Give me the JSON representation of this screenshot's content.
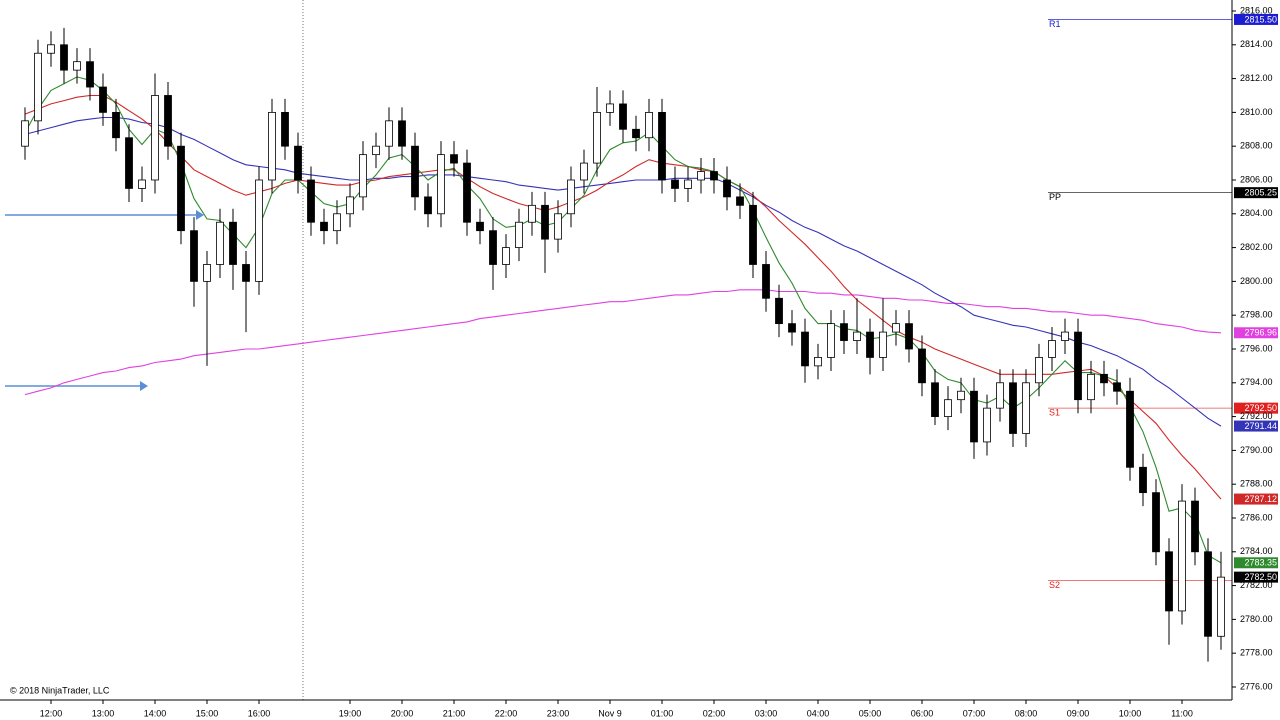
{
  "chart_data": {
    "type": "candlestick",
    "copyright": "© 2018 NinjaTrader, LLC",
    "categories": [
      null,
      null,
      "12:00",
      null,
      null,
      null,
      "13:00",
      null,
      null,
      null,
      "14:00",
      null,
      null,
      null,
      "15:00",
      null,
      null,
      null,
      "16:00",
      null,
      null,
      null,
      null,
      null,
      null,
      "19:00",
      null,
      null,
      null,
      "20:00",
      null,
      null,
      null,
      "21:00",
      null,
      null,
      null,
      "22:00",
      null,
      null,
      null,
      "23:00",
      null,
      null,
      null,
      "Nov 9",
      null,
      null,
      null,
      "01:00",
      null,
      null,
      null,
      "02:00",
      null,
      null,
      null,
      "03:00",
      null,
      null,
      null,
      "04:00",
      null,
      null,
      null,
      "05:00",
      null,
      null,
      null,
      "06:00",
      null,
      null,
      null,
      "07:00",
      null,
      null,
      null,
      "08:00",
      null,
      null,
      null,
      "09:00",
      null,
      null,
      null,
      "10:00",
      null,
      null,
      null,
      "11:00",
      null,
      null,
      null
    ],
    "open": [
      2808,
      2809.5,
      2813.5,
      2814,
      2812.5,
      2813,
      2811.5,
      2810,
      2808.5,
      2805.5,
      2806,
      2811,
      2808,
      2803,
      2800,
      2801,
      2803.5,
      2801,
      2800,
      2806,
      2810,
      2808,
      2806,
      2803.5,
      2803,
      2804,
      2805,
      2807.5,
      2808,
      2809.5,
      2808,
      2805,
      2804,
      2807.5,
      2807,
      2803.5,
      2803,
      2801,
      2802,
      2803.5,
      2804.5,
      2802.5,
      2804,
      2806,
      2807,
      2810,
      2810.5,
      2809,
      2808.5,
      2810,
      2806,
      2805.5,
      2806,
      2806.5,
      2806,
      2805,
      2804.5,
      2801,
      2799,
      2797.5,
      2797,
      2795,
      2795.5,
      2797.5,
      2796.5,
      2797,
      2795.5,
      2797,
      2797.5,
      2796,
      2794,
      2792,
      2793,
      2793.5,
      2790.5,
      2792.5,
      2794,
      2791,
      2794,
      2795.5,
      2796.5,
      2797,
      2793,
      2794.5,
      2794,
      2793.5,
      2789,
      2787.5,
      2784,
      2780.5,
      2787,
      2784,
      2779
    ],
    "high": [
      2810.3,
      2814.3,
      2814.8,
      2815,
      2813.8,
      2813.8,
      2812.3,
      2810.8,
      2809.3,
      2806.8,
      2812.3,
      2811.8,
      2808.8,
      2803.8,
      2801.8,
      2804.3,
      2804.3,
      2801.8,
      2806.8,
      2810.8,
      2810.8,
      2808.8,
      2806.8,
      2804.3,
      2804.8,
      2805.8,
      2808.3,
      2808.8,
      2810.3,
      2810.3,
      2808.8,
      2805.8,
      2808.3,
      2808.3,
      2807.8,
      2804.3,
      2803.8,
      2802.8,
      2804.3,
      2805.3,
      2805.3,
      2804.8,
      2806.8,
      2807.8,
      2811.5,
      2811.3,
      2811.3,
      2809.8,
      2810.8,
      2810.8,
      2806.8,
      2806.8,
      2807.3,
      2807.3,
      2806.8,
      2805.8,
      2805.3,
      2801.8,
      2799.8,
      2798.3,
      2797.8,
      2796.3,
      2798.3,
      2798.3,
      2799,
      2797.8,
      2799,
      2798.3,
      2798.3,
      2796.8,
      2794.8,
      2793.8,
      2794.3,
      2794.3,
      2793.3,
      2794.8,
      2794.8,
      2794.8,
      2796.3,
      2797.3,
      2797.8,
      2797.8,
      2795.3,
      2795.3,
      2794.8,
      2794.3,
      2789.8,
      2788.3,
      2784.8,
      2788,
      2787.8,
      2784.8,
      2784
    ],
    "low": [
      2807.2,
      2808.7,
      2812.7,
      2811.7,
      2811.7,
      2810.7,
      2809.2,
      2807.7,
      2804.7,
      2804.7,
      2805.2,
      2807.2,
      2802.2,
      2798.5,
      2795,
      2800.2,
      2799.5,
      2797,
      2799.2,
      2805.2,
      2807.2,
      2805.2,
      2802.7,
      2802.2,
      2802.2,
      2803.2,
      2804.2,
      2806.7,
      2807.2,
      2807.2,
      2804.2,
      2803.2,
      2803.2,
      2806.2,
      2802.7,
      2802.2,
      2799.5,
      2800.2,
      2801.2,
      2802.7,
      2800.5,
      2801.7,
      2803.2,
      2805.2,
      2806.2,
      2809.2,
      2808.2,
      2807.7,
      2807.7,
      2805.2,
      2804.7,
      2804.7,
      2805.2,
      2805.2,
      2804.2,
      2803.7,
      2800.2,
      2798.2,
      2796.7,
      2796.2,
      2794,
      2794.2,
      2794.7,
      2795.7,
      2795.7,
      2794.5,
      2794.7,
      2796.2,
      2795.2,
      2793.2,
      2791.5,
      2791.2,
      2792.2,
      2789.5,
      2789.7,
      2791.7,
      2790.2,
      2790.2,
      2793.2,
      2794.7,
      2795.7,
      2792.2,
      2792.2,
      2793.2,
      2792.7,
      2788.2,
      2786.7,
      2783.2,
      2778.5,
      2779.7,
      2783.2,
      2777.5,
      2778.2
    ],
    "close": [
      2809.5,
      2813.5,
      2814,
      2812.5,
      2813,
      2811.5,
      2810,
      2808.5,
      2805.5,
      2806,
      2811,
      2808,
      2803,
      2800,
      2801,
      2803.5,
      2801,
      2800,
      2806,
      2810,
      2808,
      2806,
      2803.5,
      2803,
      2804,
      2805,
      2807.5,
      2808,
      2809.5,
      2808,
      2805,
      2804,
      2807.5,
      2807,
      2803.5,
      2803,
      2801,
      2802,
      2803.5,
      2804.5,
      2802.5,
      2804,
      2806,
      2807,
      2810,
      2810.5,
      2809,
      2808.5,
      2810,
      2806,
      2805.5,
      2806,
      2806.5,
      2806,
      2805,
      2804.5,
      2801,
      2799,
      2797.5,
      2797,
      2795,
      2795.5,
      2797.5,
      2796.5,
      2797,
      2795.5,
      2797,
      2797.5,
      2796,
      2794,
      2792,
      2793,
      2793.5,
      2790.5,
      2792.5,
      2794,
      2791,
      2794,
      2795.5,
      2796.5,
      2797,
      2793,
      2794.5,
      2794,
      2793.5,
      2789,
      2787.5,
      2784,
      2780.5,
      2787,
      2784,
      2779,
      2782.5
    ],
    "close_label": "2782.50",
    "series": [
      {
        "color": "#e040e0",
        "last_label": "2796.96",
        "values": [
          2793.3,
          2793.5,
          2793.7,
          2794.0,
          2794.2,
          2794.4,
          2794.6,
          2794.7,
          2794.9,
          2795.0,
          2795.2,
          2795.3,
          2795.4,
          2795.6,
          2795.7,
          2795.8,
          2795.9,
          2796.0,
          2796.0,
          2796.1,
          2796.2,
          2796.3,
          2796.4,
          2796.5,
          2796.6,
          2796.7,
          2796.8,
          2796.9,
          2797.0,
          2797.1,
          2797.2,
          2797.3,
          2797.4,
          2797.5,
          2797.6,
          2797.8,
          2797.9,
          2798.0,
          2798.1,
          2798.2,
          2798.3,
          2798.4,
          2798.5,
          2798.6,
          2798.7,
          2798.8,
          2798.8,
          2798.9,
          2799.0,
          2799.1,
          2799.2,
          2799.2,
          2799.3,
          2799.4,
          2799.4,
          2799.5,
          2799.5,
          2799.5,
          2799.4,
          2799.4,
          2799.4,
          2799.3,
          2799.3,
          2799.2,
          2799.2,
          2799.1,
          2799.0,
          2799.0,
          2798.9,
          2798.9,
          2798.8,
          2798.7,
          2798.7,
          2798.6,
          2798.5,
          2798.5,
          2798.4,
          2798.4,
          2798.3,
          2798.2,
          2798.2,
          2798.1,
          2798.0,
          2798.0,
          2797.9,
          2797.8,
          2797.7,
          2797.5,
          2797.4,
          2797.3,
          2797.1,
          2797.0,
          2796.96
        ]
      },
      {
        "color": "#3434b8",
        "last_label": "2791.44",
        "values": [
          2808.7,
          2808.9,
          2809.1,
          2809.3,
          2809.5,
          2809.6,
          2809.7,
          2809.7,
          2809.6,
          2809.4,
          2809.3,
          2809.1,
          2808.7,
          2808.4,
          2808.0,
          2807.6,
          2807.2,
          2806.9,
          2806.8,
          2806.7,
          2806.6,
          2806.4,
          2806.3,
          2806.2,
          2806.1,
          2806.0,
          2806.0,
          2806.1,
          2806.1,
          2806.2,
          2806.2,
          2806.3,
          2806.3,
          2806.3,
          2806.2,
          2806.1,
          2806.0,
          2805.9,
          2805.7,
          2805.6,
          2805.5,
          2805.4,
          2805.5,
          2805.6,
          2805.7,
          2805.8,
          2805.9,
          2806.0,
          2806.0,
          2806.0,
          2806.1,
          2806.1,
          2806.1,
          2806.1,
          2805.8,
          2805.4,
          2805.0,
          2804.5,
          2804.1,
          2803.6,
          2803.2,
          2802.9,
          2802.5,
          2802.1,
          2801.8,
          2801.4,
          2801.0,
          2800.6,
          2800.2,
          2799.8,
          2799.3,
          2798.9,
          2798.5,
          2798.0,
          2797.8,
          2797.6,
          2797.4,
          2797.3,
          2797.1,
          2796.9,
          2796.7,
          2796.4,
          2796.2,
          2795.9,
          2795.6,
          2795.2,
          2794.8,
          2794.2,
          2793.7,
          2793.1,
          2792.5,
          2791.9,
          2791.44
        ]
      },
      {
        "color": "#d02828",
        "last_label": "2787.12",
        "values": [
          2809.9,
          2810.2,
          2810.5,
          2810.7,
          2810.9,
          2811.0,
          2811.0,
          2810.6,
          2810.1,
          2809.6,
          2809.0,
          2808.2,
          2807.4,
          2806.6,
          2806.2,
          2805.8,
          2805.4,
          2805.1,
          2805.3,
          2805.5,
          2805.8,
          2806.0,
          2805.9,
          2805.8,
          2805.7,
          2805.7,
          2805.9,
          2806.0,
          2806.2,
          2806.3,
          2806.4,
          2806.5,
          2806.6,
          2806.6,
          2806.1,
          2805.6,
          2805.2,
          2804.9,
          2804.6,
          2804.4,
          2804.2,
          2804.4,
          2804.7,
          2805.0,
          2805.4,
          2805.9,
          2806.3,
          2806.8,
          2807.2,
          2807.0,
          2806.9,
          2806.8,
          2806.6,
          2806.5,
          2806.0,
          2805.6,
          2805.1,
          2804.4,
          2803.6,
          2802.9,
          2802.2,
          2801.4,
          2800.6,
          2799.7,
          2798.9,
          2798.3,
          2797.7,
          2797.1,
          2796.7,
          2796.4,
          2796.0,
          2795.7,
          2795.4,
          2795.1,
          2794.8,
          2794.5,
          2794.5,
          2794.5,
          2794.5,
          2794.5,
          2794.6,
          2794.7,
          2794.8,
          2794.4,
          2793.7,
          2793.0,
          2792.3,
          2791.6,
          2790.6,
          2789.7,
          2788.9,
          2788.0,
          2787.12
        ]
      },
      {
        "color": "#2f8a2f",
        "last_label": "2783.35",
        "values": [
          2808.8,
          2810.2,
          2811.3,
          2811.7,
          2812.1,
          2811.9,
          2811.3,
          2810.5,
          2809.0,
          2808.1,
          2809.0,
          2808.7,
          2807.0,
          2804.9,
          2803.7,
          2803.6,
          2802.8,
          2802.0,
          2803.2,
          2805.2,
          2806.0,
          2806.0,
          2805.3,
          2804.6,
          2804.4,
          2804.6,
          2805.5,
          2806.3,
          2807.3,
          2807.5,
          2806.8,
          2806.0,
          2806.5,
          2806.7,
          2805.7,
          2804.9,
          2803.7,
          2803.2,
          2803.3,
          2803.7,
          2803.3,
          2803.5,
          2804.3,
          2805.1,
          2806.6,
          2807.8,
          2808.2,
          2808.3,
          2808.8,
          2808.0,
          2807.2,
          2806.8,
          2806.7,
          2806.5,
          2806.0,
          2805.6,
          2804.2,
          2802.6,
          2801.1,
          2799.9,
          2798.4,
          2797.5,
          2797.5,
          2797.2,
          2797.1,
          2796.6,
          2796.7,
          2796.9,
          2796.6,
          2795.8,
          2794.7,
          2794.2,
          2794.0,
          2793.0,
          2792.8,
          2793.2,
          2792.5,
          2793.0,
          2793.7,
          2794.5,
          2795.3,
          2794.6,
          2794.6,
          2794.4,
          2794.1,
          2792.6,
          2791.1,
          2789.0,
          2786.4,
          2786.6,
          2785.8,
          2783.8,
          2783.35
        ]
      }
    ],
    "levels": [
      {
        "name": "R1",
        "value": 2815.5,
        "label": "2815.50",
        "color": "#1c1cd0"
      },
      {
        "name": "PP",
        "value": 2805.25,
        "label": "2805.25",
        "color": "#000000"
      },
      {
        "name": "S1",
        "value": 2792.5,
        "label": "2792.50",
        "color": "#e02020"
      },
      {
        "name": "S2",
        "value": 2782.3,
        "color": "#e02020"
      }
    ],
    "ylim": [
      2775.23,
      2816.65
    ],
    "yticks": [
      {
        "value": 2776,
        "label": "2776.00"
      },
      {
        "value": 2778,
        "label": "2778.00"
      },
      {
        "value": 2780,
        "label": "2780.00"
      },
      {
        "value": 2782,
        "label": "2782.00"
      },
      {
        "value": 2784,
        "label": "2784.00"
      },
      {
        "value": 2786,
        "label": "2786.00"
      },
      {
        "value": 2788,
        "label": "2788.00"
      },
      {
        "value": 2790,
        "label": "2790.00"
      },
      {
        "value": 2792,
        "label": "2792.00"
      },
      {
        "value": 2794,
        "label": "2794.00"
      },
      {
        "value": 2796,
        "label": "2796.00"
      },
      {
        "value": 2798,
        "label": "2798.00"
      },
      {
        "value": 2800,
        "label": "2800.00"
      },
      {
        "value": 2802,
        "label": "2802.00"
      },
      {
        "value": 2804,
        "label": "2804.00"
      },
      {
        "value": 2806,
        "label": "2806.00"
      },
      {
        "value": 2808,
        "label": "2808.00"
      },
      {
        "value": 2810,
        "label": "2810.00"
      },
      {
        "value": 2812,
        "label": "2812.00"
      },
      {
        "value": 2814,
        "label": "2814.00"
      },
      {
        "value": 2816,
        "label": "2816.00"
      }
    ]
  }
}
